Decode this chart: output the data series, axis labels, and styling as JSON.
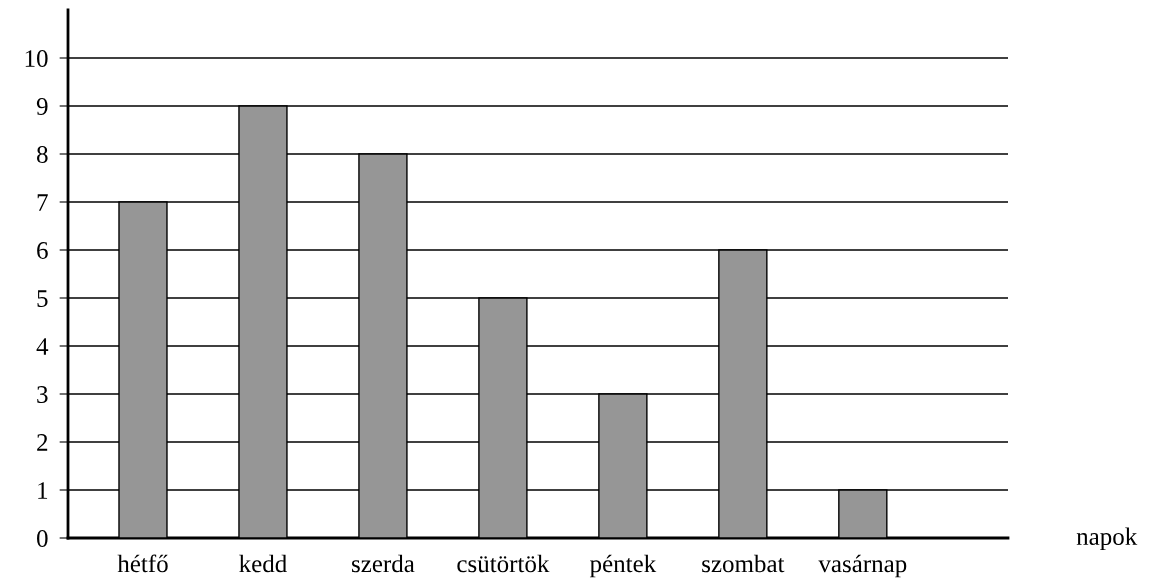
{
  "chart_data": {
    "type": "bar",
    "xlabel": "napok",
    "categories": [
      "hétfő",
      "kedd",
      "szerda",
      "csütörtök",
      "péntek",
      "szombat",
      "vasárnap"
    ],
    "values": [
      7,
      9,
      8,
      5,
      3,
      6,
      1
    ],
    "color": "#969696",
    "ylim": [
      0,
      11
    ],
    "yticks": [
      0,
      1,
      2,
      3,
      4,
      5,
      6,
      7,
      8,
      9,
      10
    ],
    "grid": "y",
    "legend": false
  }
}
